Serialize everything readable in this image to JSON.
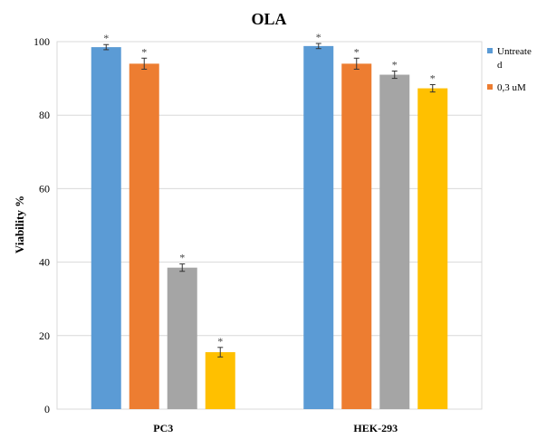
{
  "chart_data": {
    "type": "bar",
    "title": "OLA",
    "ylabel": "Viability %",
    "xlabel": "",
    "categories": [
      "PC3",
      "HEK-293"
    ],
    "ylim": [
      0,
      100
    ],
    "yticks": [
      0,
      20,
      40,
      60,
      80,
      100
    ],
    "grid": true,
    "legend_position": "right",
    "legend_entries": [
      {
        "text_lines": [
          "Untreate",
          "d"
        ],
        "color": "#5B9BD5"
      },
      {
        "text_lines": [
          "0,3 uM"
        ],
        "color": "#ED7D31"
      }
    ],
    "series": [
      {
        "color": "#5B9BD5",
        "values": [
          98.5,
          98.8
        ],
        "errors": [
          0.7,
          0.7
        ],
        "markers": [
          "*",
          "*"
        ]
      },
      {
        "color": "#ED7D31",
        "values": [
          94.0,
          94.0
        ],
        "errors": [
          1.5,
          1.5
        ],
        "markers": [
          "*",
          "*"
        ]
      },
      {
        "color": "#A5A5A5",
        "values": [
          38.5,
          91.0
        ],
        "errors": [
          1.0,
          1.0
        ],
        "markers": [
          "*",
          "*"
        ]
      },
      {
        "color": "#FFC000",
        "values": [
          15.5,
          87.3
        ],
        "errors": [
          1.3,
          1.0
        ],
        "markers": [
          "*",
          "*"
        ]
      }
    ]
  }
}
